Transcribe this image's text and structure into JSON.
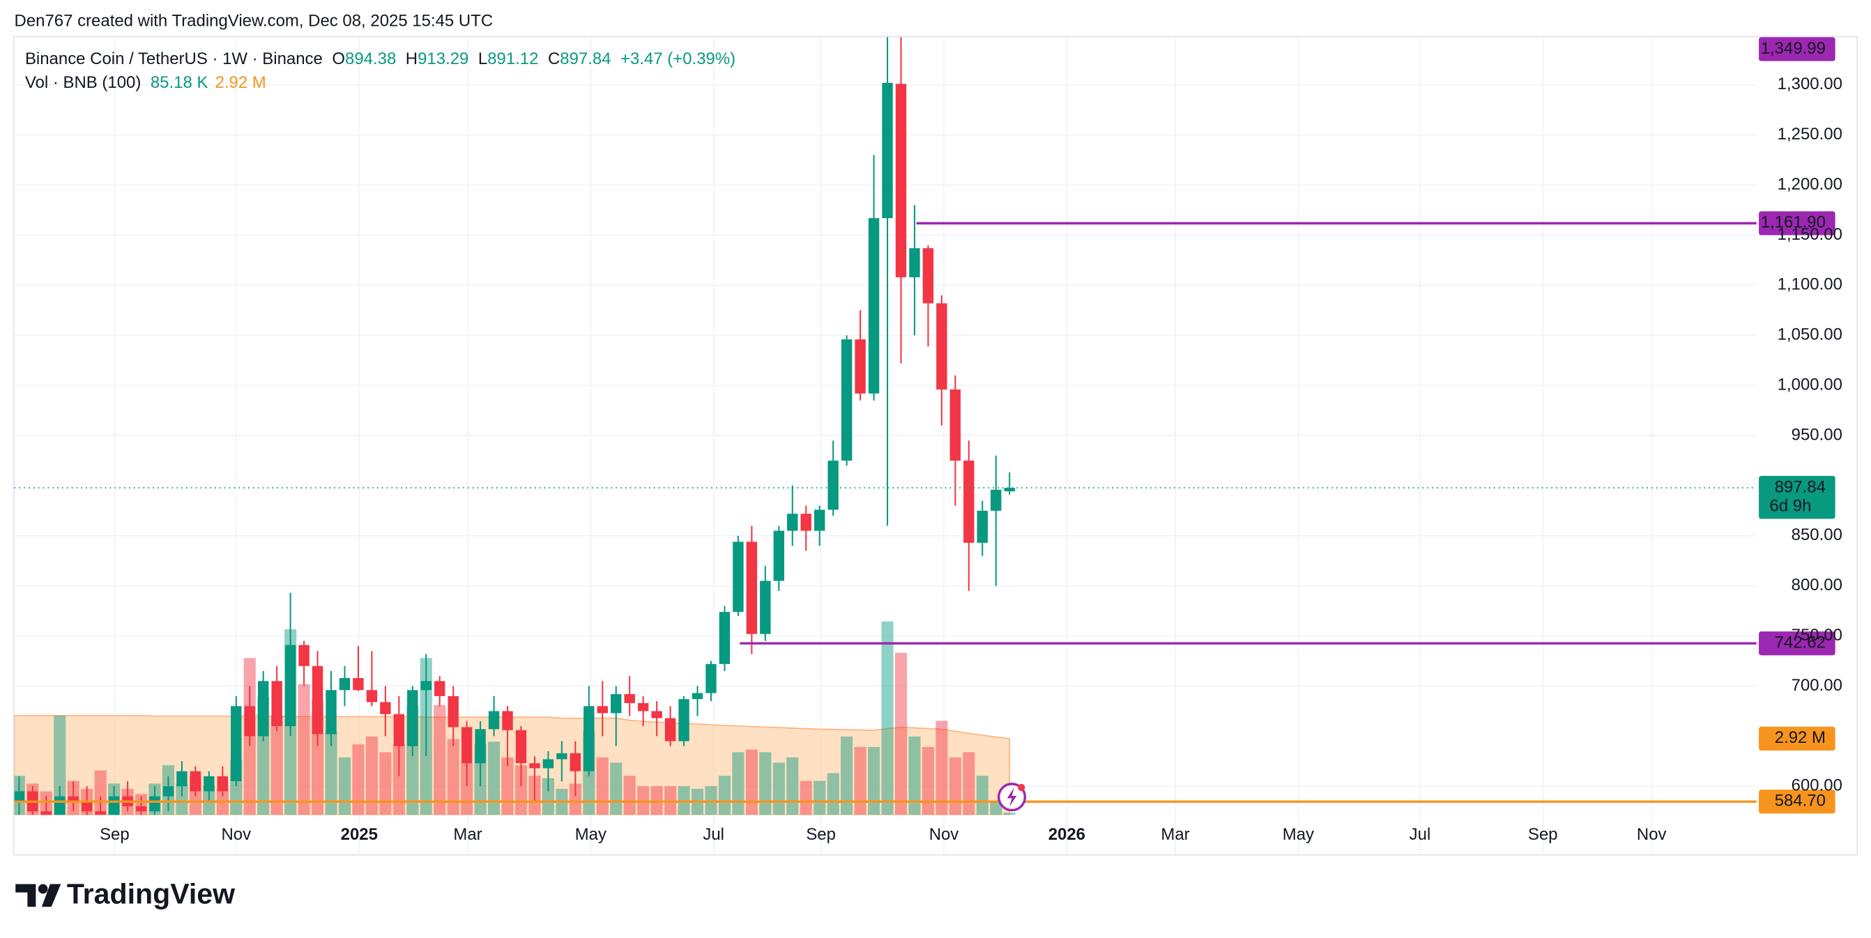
{
  "chart_data": {
    "type": "candlestick",
    "attribution": "Den767 created with TradingView.com, Dec 08, 2025 15:45 UTC",
    "title": "Binance Coin / TetherUS · 1W · Binance",
    "legend_keys": [
      "O",
      "H",
      "L",
      "C"
    ],
    "change": "+3.47 (+0.39%)",
    "countdown": "6d 9h",
    "brand": "TradingView",
    "candles": {
      "up_color": "#089981",
      "down_color": "#f23645",
      "open": [
        585,
        595,
        575,
        570,
        590,
        585,
        575,
        565,
        590,
        580,
        575,
        590,
        600,
        615,
        595,
        610,
        605,
        680,
        650,
        705,
        660,
        741,
        720,
        652,
        696,
        708,
        696,
        684,
        672,
        640,
        696,
        705,
        690,
        659,
        623,
        657,
        675,
        656,
        623,
        618,
        627,
        633,
        615,
        680,
        673,
        692,
        683,
        675,
        668,
        645,
        687,
        693,
        722,
        774,
        844,
        752,
        805,
        855,
        872,
        855,
        876,
        925,
        1046,
        992,
        1167,
        1301,
        1108,
        1137,
        1082,
        996,
        925,
        843,
        875,
        894.38
      ],
      "high": [
        610,
        600,
        590,
        600,
        605,
        600,
        590,
        600,
        605,
        590,
        600,
        610,
        625,
        620,
        615,
        620,
        690,
        700,
        715,
        720,
        793,
        745,
        735,
        715,
        720,
        740,
        735,
        700,
        690,
        700,
        732,
        710,
        700,
        665,
        665,
        690,
        680,
        660,
        630,
        635,
        645,
        645,
        700,
        705,
        700,
        710,
        690,
        685,
        680,
        690,
        700,
        725,
        780,
        850,
        860,
        820,
        860,
        900,
        880,
        880,
        945,
        1050,
        1075,
        1230,
        1375,
        1370,
        1180,
        1140,
        1090,
        1010,
        945,
        885,
        930,
        913.29
      ],
      "low": [
        570,
        560,
        555,
        555,
        575,
        565,
        555,
        560,
        575,
        560,
        565,
        575,
        590,
        590,
        585,
        590,
        600,
        640,
        645,
        655,
        650,
        700,
        640,
        640,
        680,
        695,
        680,
        650,
        610,
        630,
        630,
        680,
        640,
        600,
        600,
        650,
        620,
        600,
        585,
        595,
        605,
        590,
        610,
        650,
        640,
        670,
        660,
        650,
        640,
        640,
        670,
        685,
        715,
        770,
        732,
        745,
        795,
        840,
        835,
        840,
        870,
        920,
        985,
        985,
        860,
        1022,
        1050,
        1039,
        960,
        880,
        795,
        830,
        800,
        891.12
      ],
      "close": [
        595,
        575,
        570,
        590,
        585,
        575,
        565,
        590,
        580,
        575,
        590,
        600,
        615,
        595,
        610,
        595,
        680,
        650,
        705,
        660,
        741,
        720,
        652,
        696,
        708,
        696,
        684,
        672,
        640,
        696,
        705,
        690,
        659,
        623,
        657,
        675,
        656,
        623,
        618,
        627,
        633,
        615,
        680,
        673,
        692,
        683,
        675,
        668,
        645,
        687,
        693,
        722,
        774,
        844,
        752,
        805,
        855,
        872,
        855,
        876,
        925,
        1046,
        992,
        1167,
        1302,
        1108,
        1137,
        1082,
        996,
        925,
        843,
        875,
        896,
        897.84
      ]
    },
    "volume": {
      "name": "Vol · BNB (100)",
      "values": [
        1.5,
        1.2,
        0.9,
        3.8,
        1.3,
        1.0,
        1.7,
        1.2,
        1.0,
        0.8,
        1.2,
        1.9,
        1.2,
        1.5,
        1.1,
        1.0,
        2.1,
        6.0,
        4.5,
        3.8,
        7.1,
        5.0,
        4.4,
        3.2,
        2.2,
        2.7,
        3.0,
        2.4,
        2.7,
        4.2,
        6.0,
        4.2,
        2.9,
        2.0,
        2.7,
        2.8,
        2.2,
        1.9,
        1.5,
        1.4,
        1.0,
        1.2,
        3.2,
        2.2,
        2.0,
        1.5,
        1.1,
        1.1,
        1.1,
        1.1,
        1.0,
        1.1,
        1.5,
        2.4,
        2.5,
        2.4,
        2.0,
        2.2,
        1.3,
        1.3,
        1.6,
        3.0,
        2.6,
        2.6,
        7.4,
        6.2,
        3.0,
        2.6,
        3.6,
        2.2,
        2.4,
        1.5,
        0.5,
        0.08518
      ],
      "current_label": "85.18 K",
      "ma_values": [
        3.8,
        3.8,
        3.8,
        3.8,
        3.8,
        3.8,
        3.8,
        3.8,
        3.8,
        3.8,
        3.78,
        3.78,
        3.78,
        3.78,
        3.78,
        3.78,
        3.78,
        3.78,
        3.78,
        3.78,
        3.76,
        3.76,
        3.76,
        3.76,
        3.76,
        3.76,
        3.76,
        3.76,
        3.76,
        3.76,
        3.74,
        3.74,
        3.74,
        3.74,
        3.74,
        3.74,
        3.74,
        3.74,
        3.74,
        3.74,
        3.7,
        3.7,
        3.7,
        3.7,
        3.7,
        3.62,
        3.58,
        3.55,
        3.52,
        3.5,
        3.48,
        3.45,
        3.42,
        3.4,
        3.38,
        3.36,
        3.34,
        3.32,
        3.3,
        3.28,
        3.27,
        3.26,
        3.25,
        3.24,
        3.3,
        3.35,
        3.33,
        3.3,
        3.28,
        3.2,
        3.12,
        3.05,
        2.98,
        2.92
      ],
      "ma_label": "2.92 M",
      "ma_color": "#f7941d"
    },
    "price_lines": [
      {
        "value": 1349.99,
        "label": "1,349.99",
        "color": "#9c27b0"
      },
      {
        "value": 1161.9,
        "label": "1,161.90",
        "color": "#9c27b0"
      },
      {
        "value": 742.62,
        "label": "742.62",
        "color": "#9c27b0"
      },
      {
        "value": 584.7,
        "label": "584.70",
        "color": "#f7941d"
      }
    ],
    "ylim": [
      571.4,
      1347.6
    ],
    "yticks": [
      {
        "value": 600,
        "label": "600.00"
      },
      {
        "value": 700,
        "label": "700.00"
      },
      {
        "value": 750,
        "label": "750.00"
      },
      {
        "value": 800,
        "label": "800.00"
      },
      {
        "value": 850,
        "label": "850.00"
      },
      {
        "value": 950,
        "label": "950.00"
      },
      {
        "value": 1000,
        "label": "1,000.00"
      },
      {
        "value": 1050,
        "label": "1,050.00"
      },
      {
        "value": 1100,
        "label": "1,100.00"
      },
      {
        "value": 1150,
        "label": "1,150.00"
      },
      {
        "value": 1200,
        "label": "1,200.00"
      },
      {
        "value": 1250,
        "label": "1,250.00"
      },
      {
        "value": 1300,
        "label": "1,300.00"
      }
    ],
    "xlim": [
      -0.35,
      128.05
    ],
    "xticks": [
      {
        "value": 7.04,
        "label": "Sep"
      },
      {
        "value": 16.0,
        "label": "Nov"
      },
      {
        "value": 25.07,
        "label": "2025"
      },
      {
        "value": 33.07,
        "label": "Mar"
      },
      {
        "value": 42.13,
        "label": "May"
      },
      {
        "value": 51.19,
        "label": "Jul"
      },
      {
        "value": 59.1,
        "label": "Sep"
      },
      {
        "value": 68.16,
        "label": "Nov"
      },
      {
        "value": 77.22,
        "label": "2026"
      },
      {
        "value": 85.22,
        "label": "Mar"
      },
      {
        "value": 94.28,
        "label": "May"
      },
      {
        "value": 103.25,
        "label": "Jul"
      },
      {
        "value": 112.31,
        "label": "Sep"
      },
      {
        "value": 120.32,
        "label": "Nov"
      }
    ],
    "grid": true
  }
}
